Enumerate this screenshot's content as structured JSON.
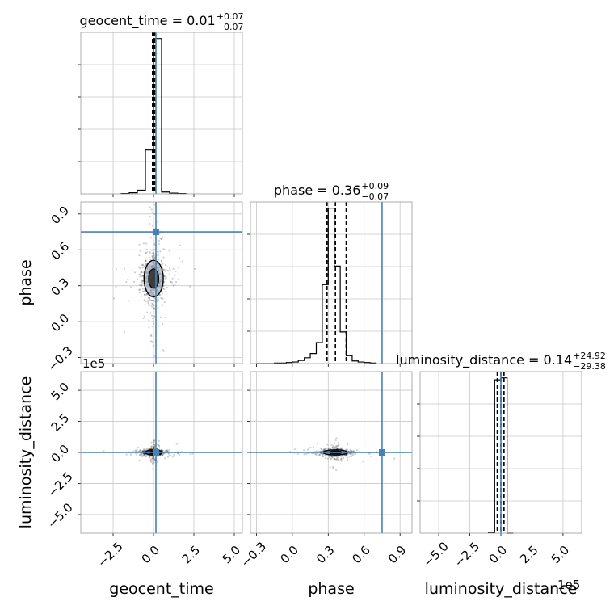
{
  "chart_data": {
    "type": "corner",
    "parameters": [
      "geocent_time",
      "phase",
      "luminosity_distance"
    ],
    "titles": [
      {
        "param": "geocent_time",
        "value": "0.01",
        "plus": "+0.07",
        "minus": "−0.07"
      },
      {
        "param": "phase",
        "value": "0.36",
        "plus": "+0.09",
        "minus": "−0.07"
      },
      {
        "param": "luminosity_distance",
        "value": "0.14",
        "plus": "+24.92",
        "minus": "−29.38"
      }
    ],
    "axes": {
      "geocent_time": {
        "range": [
          -4.5,
          5.5
        ],
        "ticks": [
          -2.5,
          0.0,
          2.5,
          5.0
        ],
        "tick_labels": [
          "−2.5",
          "0.0",
          "2.5",
          "5.0"
        ]
      },
      "phase": {
        "range": [
          -0.35,
          1.0
        ],
        "ticks": [
          -0.3,
          0.0,
          0.3,
          0.6,
          0.9
        ],
        "tick_labels": [
          "−0.3",
          "0.0",
          "0.3",
          "0.6",
          "0.9"
        ]
      },
      "luminosity_distance": {
        "range": [
          -6.5,
          6.5
        ],
        "ticks": [
          -5.0,
          -2.5,
          0.0,
          2.5,
          5.0
        ],
        "tick_labels": [
          "−5.0",
          "−2.5",
          "0.0",
          "2.5",
          "5.0"
        ],
        "offset_label": "1e5"
      }
    },
    "truths": {
      "geocent_time": 0.15,
      "phase": 0.75,
      "luminosity_distance": 0.0
    },
    "quantiles": {
      "geocent_time": [
        -0.06,
        0.01,
        0.08
      ],
      "phase": [
        0.29,
        0.36,
        0.45
      ],
      "luminosity_distance": [
        -0.29,
        0.0,
        0.25
      ]
    },
    "histograms": {
      "geocent_time": {
        "bin_edges": [
          -2.0,
          -1.5,
          -1.0,
          -0.5,
          0.0,
          0.5,
          1.0,
          1.5,
          2.0
        ],
        "counts": [
          1,
          3,
          10,
          120,
          425,
          5,
          2,
          1
        ]
      },
      "phase": {
        "bin_edges": [
          -0.3,
          -0.25,
          -0.2,
          -0.15,
          -0.1,
          -0.05,
          0.0,
          0.05,
          0.1,
          0.15,
          0.2,
          0.25,
          0.3,
          0.35,
          0.4,
          0.45,
          0.5,
          0.55,
          0.6,
          0.65,
          0.7
        ],
        "counts": [
          0,
          0,
          0,
          1,
          1,
          2,
          3,
          6,
          11,
          19,
          40,
          150,
          295,
          185,
          60,
          15,
          5,
          3,
          2,
          1
        ]
      },
      "luminosity_distance": {
        "bin_edges": [
          -1.0,
          -0.5,
          0.0,
          0.5,
          1.0
        ],
        "counts": [
          3,
          790,
          800,
          0
        ]
      }
    },
    "grid": true
  }
}
